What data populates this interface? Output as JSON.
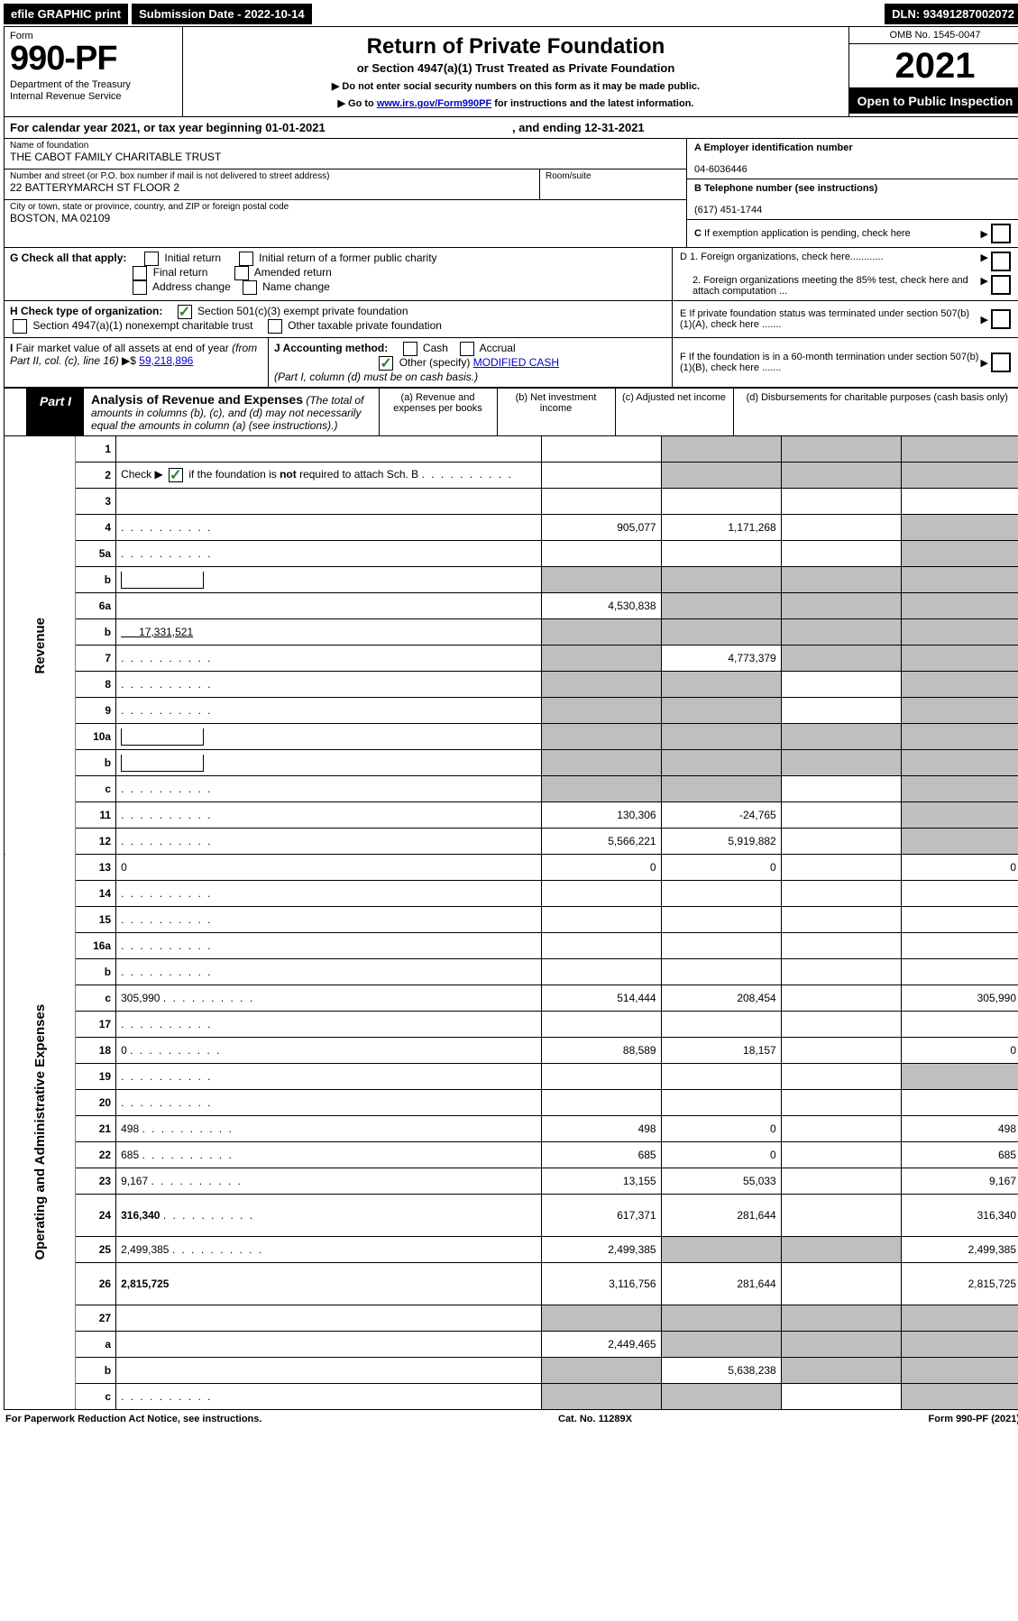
{
  "topbar": {
    "efile": "efile GRAPHIC print",
    "submission_label": "Submission Date - 2022-10-14",
    "dln": "DLN: 93491287002072"
  },
  "header": {
    "form_label": "Form",
    "form_number": "990-PF",
    "dept1": "Department of the Treasury",
    "dept2": "Internal Revenue Service",
    "title": "Return of Private Foundation",
    "subtitle": "or Section 4947(a)(1) Trust Treated as Private Foundation",
    "note1": "▶ Do not enter social security numbers on this form as it may be made public.",
    "note2_pre": "▶ Go to ",
    "note2_link": "www.irs.gov/Form990PF",
    "note2_post": " for instructions and the latest information.",
    "omb": "OMB No. 1545-0047",
    "year": "2021",
    "open": "Open to Public Inspection"
  },
  "calyear": {
    "pre": "For calendar year 2021, or tax year beginning ",
    "begin": "01-01-2021",
    "mid": " , and ending ",
    "end": "12-31-2021"
  },
  "entity": {
    "name_lbl": "Name of foundation",
    "name": "THE CABOT FAMILY CHARITABLE TRUST",
    "addr_lbl": "Number and street (or P.O. box number if mail is not delivered to street address)",
    "addr": "22 BATTERYMARCH ST FLOOR 2",
    "room_lbl": "Room/suite",
    "city_lbl": "City or town, state or province, country, and ZIP or foreign postal code",
    "city": "BOSTON, MA  02109",
    "a_lbl": "A Employer identification number",
    "a_val": "04-6036446",
    "b_lbl": "B Telephone number (see instructions)",
    "b_val": "(617) 451-1744",
    "c_lbl": "C If exemption application is pending, check here"
  },
  "checks": {
    "g_lbl": "G Check all that apply:",
    "g1": "Initial return",
    "g2": "Initial return of a former public charity",
    "g3": "Final return",
    "g4": "Amended return",
    "g5": "Address change",
    "g6": "Name change",
    "h_lbl": "H Check type of organization:",
    "h1": "Section 501(c)(3) exempt private foundation",
    "h2": "Section 4947(a)(1) nonexempt charitable trust",
    "h3": "Other taxable private foundation",
    "i_lbl": "I Fair market value of all assets at end of year (from Part II, col. (c), line 16)",
    "i_prefix": "▶$ ",
    "i_val": "59,218,896",
    "j_lbl": "J Accounting method:",
    "j1": "Cash",
    "j2": "Accrual",
    "j3_pre": "Other (specify) ",
    "j3_val": "MODIFIED CASH",
    "j_note": "(Part I, column (d) must be on cash basis.)",
    "d1": "D 1. Foreign organizations, check here............",
    "d2": "2. Foreign organizations meeting the 85% test, check here and attach computation ...",
    "e": "E  If private foundation status was terminated under section 507(b)(1)(A), check here .......",
    "f": "F  If the foundation is in a 60-month termination under section 507(b)(1)(B), check here .......",
    "arrow": "▶"
  },
  "part1": {
    "tab": "Part I",
    "title": "Analysis of Revenue and Expenses",
    "title_note": " (The total of amounts in columns (b), (c), and (d) may not necessarily equal the amounts in column (a) (see instructions).)",
    "col_a": "(a) Revenue and expenses per books",
    "col_b": "(b) Net investment income",
    "col_c": "(c) Adjusted net income",
    "col_d": "(d) Disbursements for charitable purposes (cash basis only)",
    "side_rev": "Revenue",
    "side_exp": "Operating and Administrative Expenses"
  },
  "lines": [
    {
      "n": "1",
      "d": "",
      "a": "",
      "b": "",
      "c": "",
      "b_sh": 1,
      "c_sh": 1,
      "d_sh": 1
    },
    {
      "n": "2",
      "d": "",
      "a": "",
      "b": "",
      "c": "",
      "b_sh": 1,
      "c_sh": 1,
      "d_sh": 1,
      "html": 1
    },
    {
      "n": "3",
      "d": "",
      "a": "",
      "b": "",
      "c": ""
    },
    {
      "n": "4",
      "d": "",
      "a": "905,077",
      "b": "1,171,268",
      "c": "",
      "dots": 1,
      "d_sh": 1
    },
    {
      "n": "5a",
      "d": "",
      "a": "",
      "b": "",
      "c": "",
      "dots": 1,
      "d_sh": 1
    },
    {
      "n": "b",
      "d": "",
      "a": "",
      "b": "",
      "c": "",
      "inbox": 1,
      "a_sh": 1,
      "b_sh": 1,
      "c_sh": 1,
      "d_sh": 1
    },
    {
      "n": "6a",
      "d": "",
      "a": "4,530,838",
      "b": "",
      "c": "",
      "b_sh": 1,
      "c_sh": 1,
      "d_sh": 1
    },
    {
      "n": "b",
      "d": "",
      "a": "",
      "b": "",
      "c": "",
      "inline_val": "17,331,521",
      "a_sh": 1,
      "b_sh": 1,
      "c_sh": 1,
      "d_sh": 1
    },
    {
      "n": "7",
      "d": "",
      "a": "",
      "b": "4,773,379",
      "c": "",
      "dots": 1,
      "a_sh": 1,
      "c_sh": 1,
      "d_sh": 1
    },
    {
      "n": "8",
      "d": "",
      "a": "",
      "b": "",
      "c": "",
      "dots": 1,
      "a_sh": 1,
      "b_sh": 1,
      "d_sh": 1
    },
    {
      "n": "9",
      "d": "",
      "a": "",
      "b": "",
      "c": "",
      "dots": 1,
      "a_sh": 1,
      "b_sh": 1,
      "d_sh": 1
    },
    {
      "n": "10a",
      "d": "",
      "a": "",
      "b": "",
      "c": "",
      "inbox": 1,
      "a_sh": 1,
      "b_sh": 1,
      "c_sh": 1,
      "d_sh": 1
    },
    {
      "n": "b",
      "d": "",
      "a": "",
      "b": "",
      "c": "",
      "inbox": 1,
      "dots": 1,
      "a_sh": 1,
      "b_sh": 1,
      "c_sh": 1,
      "d_sh": 1
    },
    {
      "n": "c",
      "d": "",
      "a": "",
      "b": "",
      "c": "",
      "dots": 1,
      "a_sh": 1,
      "b_sh": 1,
      "d_sh": 1
    },
    {
      "n": "11",
      "d": "",
      "a": "130,306",
      "b": "-24,765",
      "c": "",
      "dots": 1,
      "d_sh": 1
    },
    {
      "n": "12",
      "d": "",
      "a": "5,566,221",
      "b": "5,919,882",
      "c": "",
      "dots": 1,
      "bold": 1,
      "d_sh": 1
    },
    {
      "n": "13",
      "d": "0",
      "a": "0",
      "b": "0",
      "c": ""
    },
    {
      "n": "14",
      "d": "",
      "a": "",
      "b": "",
      "c": "",
      "dots": 1
    },
    {
      "n": "15",
      "d": "",
      "a": "",
      "b": "",
      "c": "",
      "dots": 1
    },
    {
      "n": "16a",
      "d": "",
      "a": "",
      "b": "",
      "c": "",
      "dots": 1
    },
    {
      "n": "b",
      "d": "",
      "a": "",
      "b": "",
      "c": "",
      "dots": 1
    },
    {
      "n": "c",
      "d": "305,990",
      "a": "514,444",
      "b": "208,454",
      "c": "",
      "dots": 1
    },
    {
      "n": "17",
      "d": "",
      "a": "",
      "b": "",
      "c": "",
      "dots": 1
    },
    {
      "n": "18",
      "d": "0",
      "a": "88,589",
      "b": "18,157",
      "c": "",
      "dots": 1
    },
    {
      "n": "19",
      "d": "",
      "a": "",
      "b": "",
      "c": "",
      "dots": 1,
      "d_sh": 1
    },
    {
      "n": "20",
      "d": "",
      "a": "",
      "b": "",
      "c": "",
      "dots": 1
    },
    {
      "n": "21",
      "d": "498",
      "a": "498",
      "b": "0",
      "c": "",
      "dots": 1
    },
    {
      "n": "22",
      "d": "685",
      "a": "685",
      "b": "0",
      "c": "",
      "dots": 1
    },
    {
      "n": "23",
      "d": "9,167",
      "a": "13,155",
      "b": "55,033",
      "c": "",
      "dots": 1
    },
    {
      "n": "24",
      "d": "316,340",
      "a": "617,371",
      "b": "281,644",
      "c": "",
      "dots": 1,
      "bold": 1,
      "tall": 1
    },
    {
      "n": "25",
      "d": "2,499,385",
      "a": "2,499,385",
      "b": "",
      "c": "",
      "dots": 1,
      "b_sh": 1,
      "c_sh": 1
    },
    {
      "n": "26",
      "d": "2,815,725",
      "a": "3,116,756",
      "b": "281,644",
      "c": "",
      "bold": 1,
      "tall": 1
    },
    {
      "n": "27",
      "d": "",
      "a": "",
      "b": "",
      "c": "",
      "a_sh": 1,
      "b_sh": 1,
      "c_sh": 1,
      "d_sh": 1
    },
    {
      "n": "a",
      "d": "",
      "a": "2,449,465",
      "b": "",
      "c": "",
      "bold": 1,
      "b_sh": 1,
      "c_sh": 1,
      "d_sh": 1
    },
    {
      "n": "b",
      "d": "",
      "a": "",
      "b": "5,638,238",
      "c": "",
      "bold": 1,
      "a_sh": 1,
      "c_sh": 1,
      "d_sh": 1
    },
    {
      "n": "c",
      "d": "",
      "a": "",
      "b": "",
      "c": "",
      "bold": 1,
      "dots": 1,
      "a_sh": 1,
      "b_sh": 1,
      "d_sh": 1
    }
  ],
  "footer": {
    "left": "For Paperwork Reduction Act Notice, see instructions.",
    "mid": "Cat. No. 11289X",
    "right": "Form 990-PF (2021)"
  }
}
